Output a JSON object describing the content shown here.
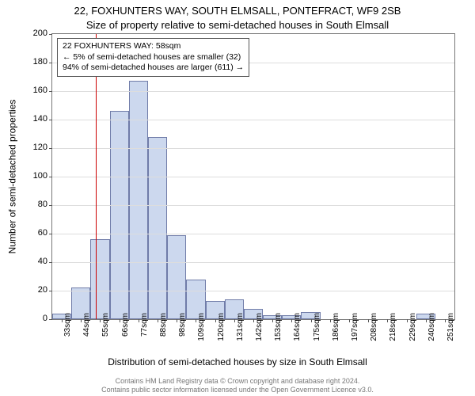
{
  "title_main": "22, FOXHUNTERS WAY, SOUTH ELMSALL, PONTEFRACT, WF9 2SB",
  "title_sub": "Size of property relative to semi-detached houses in South Elmsall",
  "ylabel": "Number of semi-detached properties",
  "xlabel": "Distribution of semi-detached houses by size in South Elmsall",
  "annotation": {
    "line1": "22 FOXHUNTERS WAY: 58sqm",
    "line2": "← 5% of semi-detached houses are smaller (32)",
    "line3": "94% of semi-detached houses are larger (611) →"
  },
  "footer": {
    "line1": "Contains HM Land Registry data © Crown copyright and database right 2024.",
    "line2": "Contains public sector information licensed under the Open Government Licence v3.0."
  },
  "chart": {
    "type": "histogram",
    "ylim": [
      0,
      200
    ],
    "ytick_step": 20,
    "yticks": [
      0,
      20,
      40,
      60,
      80,
      100,
      120,
      140,
      160,
      180,
      200
    ],
    "x_categories": [
      "33sqm",
      "44sqm",
      "55sqm",
      "66sqm",
      "77sqm",
      "88sqm",
      "98sqm",
      "109sqm",
      "120sqm",
      "131sqm",
      "142sqm",
      "153sqm",
      "164sqm",
      "175sqm",
      "186sqm",
      "197sqm",
      "208sqm",
      "218sqm",
      "229sqm",
      "240sqm",
      "251sqm"
    ],
    "values": [
      4,
      22,
      56,
      146,
      167,
      128,
      59,
      28,
      13,
      14,
      7,
      3,
      3,
      5,
      0,
      0,
      0,
      0,
      0,
      4,
      0
    ],
    "bar_color": "#ccd8ee",
    "bar_border_color": "#707ca8",
    "background_color": "#ffffff",
    "grid_color": "#dddddd",
    "axis_color": "#777777",
    "marker_color": "#cc0000",
    "marker_value": 58,
    "x_start": 33,
    "x_step": 11,
    "title_fontsize": 13,
    "label_fontsize": 12,
    "tick_fontsize": 11,
    "annotation_fontsize": 10.5
  }
}
